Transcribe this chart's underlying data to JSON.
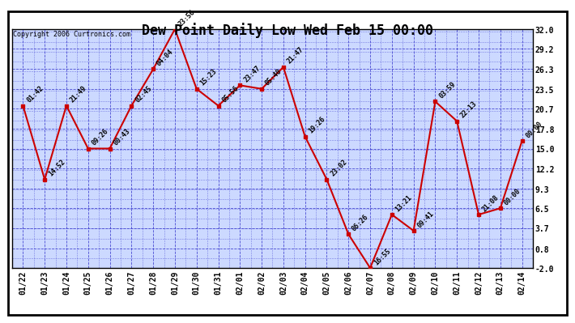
{
  "title": "Dew Point Daily Low Wed Feb 15 00:00",
  "copyright": "Copyright 2006 Curtronics.com",
  "x_labels": [
    "01/22",
    "01/23",
    "01/24",
    "01/25",
    "01/26",
    "01/27",
    "01/28",
    "01/29",
    "01/30",
    "01/31",
    "02/01",
    "02/02",
    "02/03",
    "02/04",
    "02/05",
    "02/06",
    "02/07",
    "02/08",
    "02/09",
    "02/10",
    "02/11",
    "02/12",
    "02/13",
    "02/14"
  ],
  "y_values": [
    21.1,
    10.6,
    21.1,
    15.0,
    15.0,
    21.1,
    26.3,
    32.0,
    23.5,
    21.1,
    24.0,
    23.5,
    26.6,
    16.7,
    10.6,
    2.8,
    -2.0,
    5.6,
    3.3,
    21.7,
    18.9,
    5.6,
    6.5,
    16.1
  ],
  "point_labels": [
    "01:42",
    "14:52",
    "21:49",
    "09:26",
    "00:43",
    "02:45",
    "04:04",
    "23:56",
    "15:23",
    "05:56",
    "23:47",
    "05:40",
    "21:47",
    "19:26",
    "23:02",
    "06:26",
    "16:55",
    "13:21",
    "09:41",
    "03:59",
    "22:13",
    "21:08",
    "00:00",
    "00:00"
  ],
  "y_ticks": [
    -2.0,
    0.8,
    3.7,
    6.5,
    9.3,
    12.2,
    15.0,
    17.8,
    20.7,
    23.5,
    26.3,
    29.2,
    32.0
  ],
  "y_tick_labels": [
    "-2.0",
    "0.8",
    "3.7",
    "6.5",
    "9.3",
    "12.2",
    "15.0",
    "17.8",
    "20.7",
    "23.5",
    "26.3",
    "29.2",
    "32.0"
  ],
  "line_color": "#cc0000",
  "marker_color": "#cc0000",
  "bg_color": "#ffffff",
  "plot_bg_color": "#ccd9ff",
  "grid_color": "#3333cc",
  "border_color": "#000000",
  "title_fontsize": 12,
  "tick_fontsize": 7,
  "point_label_fontsize": 6,
  "ylim": [
    -2.0,
    32.0
  ]
}
